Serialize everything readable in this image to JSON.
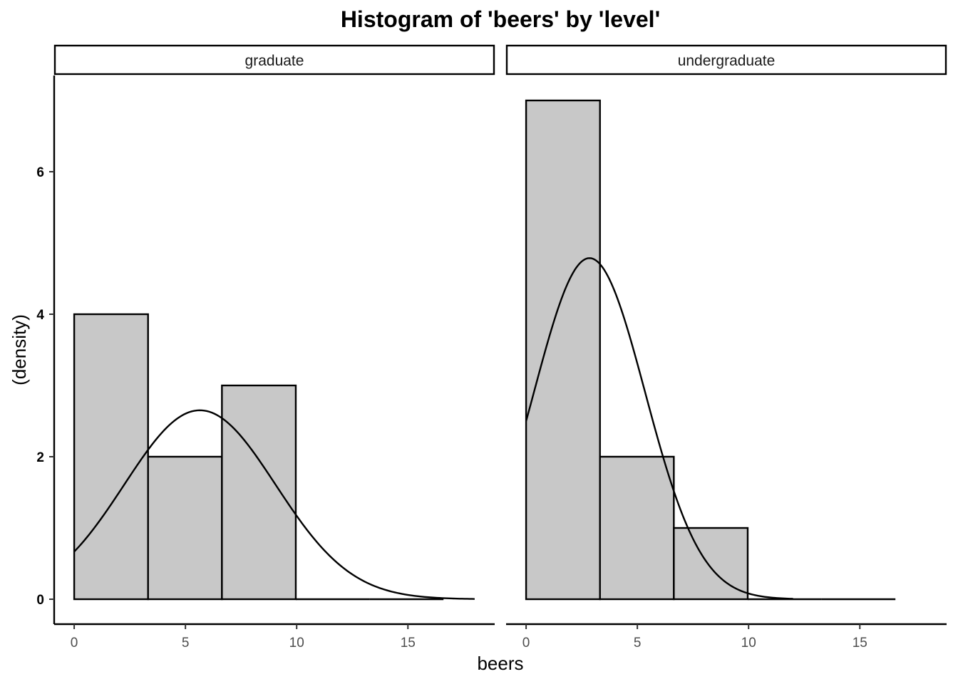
{
  "chart_data": {
    "type": "bar",
    "title": "Histogram of 'beers' by 'level'",
    "xlabel": "beers",
    "ylabel": "(density)",
    "xlim": [
      -0.9,
      18.9
    ],
    "ylim": [
      -0.35,
      7.35
    ],
    "x_ticks": [
      0,
      5,
      10,
      15
    ],
    "y_ticks": [
      0,
      2,
      4,
      6
    ],
    "grid": false,
    "bar_fill": "#c8c8c8",
    "bar_stroke": "#000000",
    "panels": [
      {
        "facet": "graduate",
        "bins": [
          {
            "x0": 0,
            "x1": 3.32,
            "value": 4
          },
          {
            "x0": 3.32,
            "x1": 6.64,
            "value": 2
          },
          {
            "x0": 6.64,
            "x1": 9.96,
            "value": 3
          },
          {
            "x0": 9.96,
            "x1": 13.28,
            "value": 0
          },
          {
            "x0": 13.28,
            "x1": 16.6,
            "value": 0
          }
        ],
        "normal_curve": {
          "mean": 5.65,
          "sd": 3.4,
          "scale": 22.6,
          "x_from": 0,
          "x_to": 18
        }
      },
      {
        "facet": "undergraduate",
        "bins": [
          {
            "x0": 0,
            "x1": 3.32,
            "value": 7
          },
          {
            "x0": 3.32,
            "x1": 6.64,
            "value": 2
          },
          {
            "x0": 6.64,
            "x1": 9.96,
            "value": 1
          },
          {
            "x0": 9.96,
            "x1": 13.28,
            "value": 0
          },
          {
            "x0": 13.28,
            "x1": 16.6,
            "value": 0
          }
        ],
        "normal_curve": {
          "mean": 2.85,
          "sd": 2.5,
          "scale": 30.0,
          "x_from": 0,
          "x_to": 12
        }
      }
    ]
  }
}
